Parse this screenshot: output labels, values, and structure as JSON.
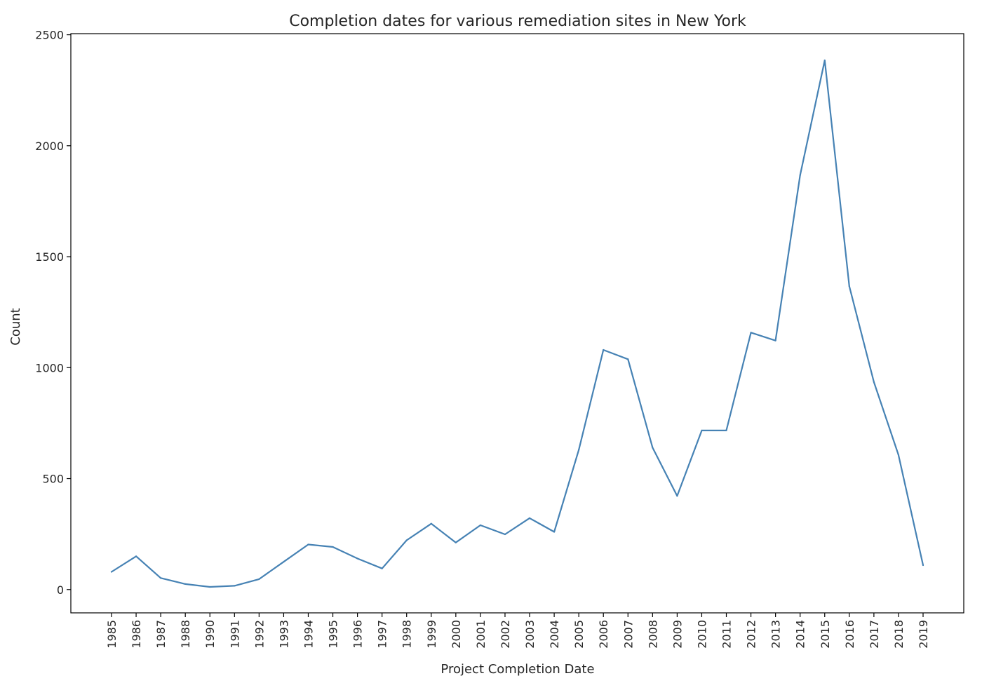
{
  "chart_data": {
    "type": "line",
    "title": "Completion dates for various remediation sites in New York",
    "xlabel": "Project Completion Date",
    "ylabel": "Count",
    "ylim": [
      -105,
      2505
    ],
    "yticks": [
      0,
      500,
      1000,
      1500,
      2000,
      2500
    ],
    "grid": false,
    "legend": "none",
    "line_color": "#4682b4",
    "x": [
      "1985",
      "1986",
      "1987",
      "1988",
      "1990",
      "1991",
      "1992",
      "1993",
      "1994",
      "1995",
      "1996",
      "1997",
      "1998",
      "1999",
      "2000",
      "2001",
      "2002",
      "2003",
      "2004",
      "2005",
      "2006",
      "2007",
      "2008",
      "2009",
      "2010",
      "2011",
      "2012",
      "2013",
      "2014",
      "2015",
      "2016",
      "2017",
      "2018",
      "2019"
    ],
    "series": [
      {
        "values": [
          80,
          150,
          52,
          25,
          12,
          17,
          47,
          125,
          203,
          192,
          140,
          95,
          222,
          297,
          212,
          290,
          249,
          322,
          260,
          630,
          1080,
          1038,
          640,
          422,
          717,
          717,
          1158,
          1122,
          1867,
          2385,
          1367,
          935,
          607,
          110
        ]
      }
    ]
  }
}
